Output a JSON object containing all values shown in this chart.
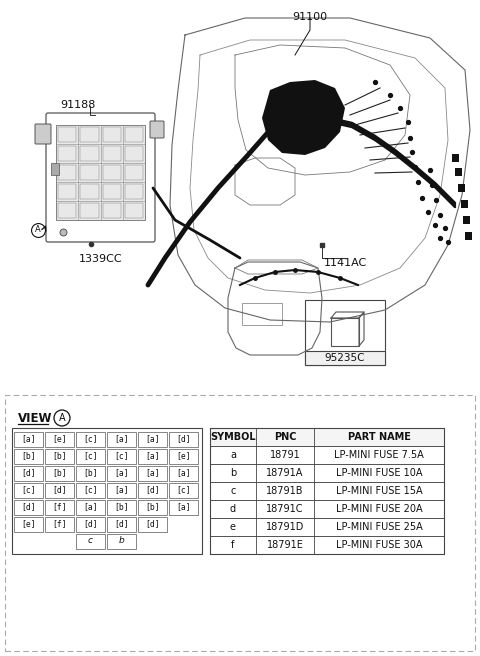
{
  "bg_color": "#ffffff",
  "part_numbers": {
    "main_wiring": "91100",
    "module": "91188",
    "label_module": "1339CC",
    "connector": "1141AC",
    "relay": "95235C"
  },
  "view_label": "VIEW",
  "view_circle_label": "A",
  "fuse_grid": [
    [
      "a",
      "e",
      "c",
      "a",
      "a",
      "d"
    ],
    [
      "b",
      "b",
      "c",
      "c",
      "a",
      "e"
    ],
    [
      "d",
      "b",
      "b",
      "a",
      "a",
      "a"
    ],
    [
      "c",
      "d",
      "c",
      "a",
      "d",
      "c"
    ],
    [
      "d",
      "f",
      "a",
      "b",
      "b",
      "a"
    ],
    [
      "e",
      "f",
      "d",
      "d",
      "d",
      ""
    ]
  ],
  "bottom_labels": [
    "c",
    "b"
  ],
  "table_headers": [
    "SYMBOL",
    "PNC",
    "PART NAME"
  ],
  "table_rows": [
    [
      "a",
      "18791",
      "LP-MINI FUSE 7.5A"
    ],
    [
      "b",
      "18791A",
      "LP-MINI FUSE 10A"
    ],
    [
      "c",
      "18791B",
      "LP-MINI FUSE 15A"
    ],
    [
      "d",
      "18791C",
      "LP-MINI FUSE 20A"
    ],
    [
      "e",
      "18791D",
      "LP-MINI FUSE 25A"
    ],
    [
      "f",
      "18791E",
      "LP-MINI FUSE 30A"
    ]
  ],
  "dashed_border_color": "#aaaaaa",
  "table_border_color": "#444444",
  "text_color": "#111111",
  "font_size_small": 6.0,
  "font_size_label": 7.5,
  "font_size_pn": 8.0,
  "font_size_table": 7.0,
  "line_color": "#333333",
  "dark_color": "#111111"
}
